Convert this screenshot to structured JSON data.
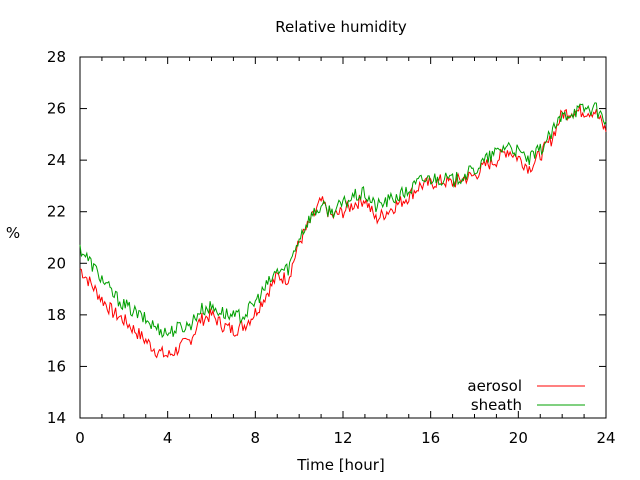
{
  "chart_data": {
    "type": "line",
    "title": "Relative humidity",
    "xlabel": "Time [hour]",
    "ylabel": "%",
    "xlim": [
      0,
      24
    ],
    "ylim": [
      14,
      28
    ],
    "x_ticks": [
      0,
      4,
      8,
      12,
      16,
      20,
      24
    ],
    "y_ticks": [
      14,
      16,
      18,
      20,
      22,
      24,
      26,
      28
    ],
    "grid": false,
    "legend_position": "bottom-right",
    "series": [
      {
        "name": "aerosol",
        "color": "#ff0000",
        "x": [
          0,
          0.5,
          1.0,
          1.5,
          2.0,
          2.5,
          3.0,
          3.5,
          4.0,
          4.5,
          5.0,
          5.5,
          6.0,
          6.5,
          7.0,
          7.5,
          8.0,
          8.5,
          9.0,
          9.5,
          10.0,
          10.5,
          11.0,
          11.5,
          12.0,
          12.5,
          13.0,
          13.5,
          14.0,
          14.5,
          15.0,
          15.5,
          16.0,
          16.5,
          17.0,
          17.5,
          18.0,
          18.5,
          19.0,
          19.5,
          20.0,
          20.5,
          21.0,
          21.5,
          22.0,
          22.5,
          23.0,
          23.5,
          24.0
        ],
        "y": [
          19.8,
          19.2,
          18.6,
          18.1,
          17.8,
          17.4,
          17.0,
          16.6,
          16.4,
          16.7,
          17.0,
          17.8,
          18.0,
          17.6,
          17.4,
          17.6,
          18.1,
          18.8,
          19.5,
          19.4,
          20.8,
          21.6,
          22.4,
          21.8,
          22.0,
          22.3,
          22.5,
          21.7,
          22.0,
          22.3,
          22.6,
          23.0,
          23.1,
          23.2,
          23.1,
          23.3,
          23.4,
          23.8,
          24.0,
          24.4,
          24.1,
          23.7,
          24.2,
          24.8,
          25.8,
          25.9,
          25.9,
          25.9,
          25.1
        ]
      },
      {
        "name": "sheath",
        "color": "#00a000",
        "x": [
          0,
          0.5,
          1.0,
          1.5,
          2.0,
          2.5,
          3.0,
          3.5,
          4.0,
          4.5,
          5.0,
          5.5,
          6.0,
          6.5,
          7.0,
          7.5,
          8.0,
          8.5,
          9.0,
          9.5,
          10.0,
          10.5,
          11.0,
          11.5,
          12.0,
          12.5,
          13.0,
          13.5,
          14.0,
          14.5,
          15.0,
          15.5,
          16.0,
          16.5,
          17.0,
          17.5,
          18.0,
          18.5,
          19.0,
          19.5,
          20.0,
          20.5,
          21.0,
          21.5,
          22.0,
          22.5,
          23.0,
          23.5,
          24.0
        ],
        "y": [
          20.6,
          20.0,
          19.4,
          18.8,
          18.4,
          18.1,
          17.8,
          17.5,
          17.3,
          17.5,
          17.6,
          18.2,
          18.3,
          18.1,
          17.9,
          18.0,
          18.5,
          19.1,
          19.7,
          19.8,
          21.0,
          21.8,
          22.2,
          22.0,
          22.3,
          22.6,
          22.7,
          22.2,
          22.4,
          22.6,
          22.8,
          23.2,
          23.3,
          23.3,
          23.2,
          23.4,
          23.6,
          24.0,
          24.3,
          24.6,
          24.3,
          24.0,
          24.4,
          25.0,
          25.7,
          25.9,
          26.0,
          26.0,
          25.5
        ]
      }
    ]
  }
}
